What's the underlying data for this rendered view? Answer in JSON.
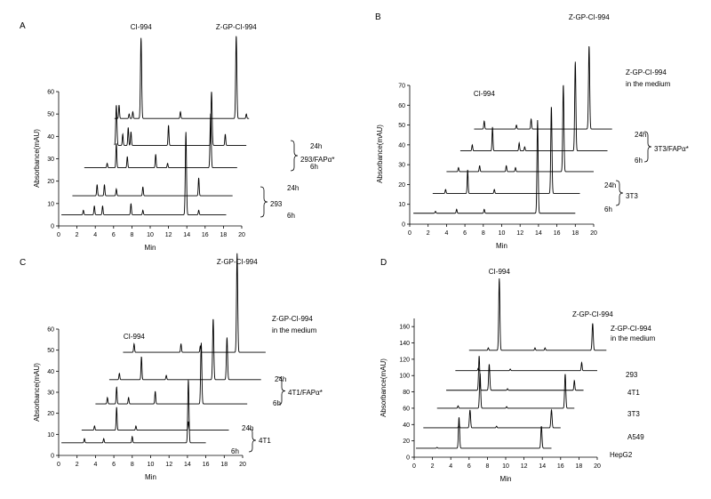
{
  "chart_data": [
    {
      "panel_label": "A",
      "type": "line",
      "xlabel": "Min",
      "ylabel": "Absorbance(mAU)",
      "xlim": [
        0,
        20
      ],
      "ylim": [
        0,
        60
      ],
      "x_ticks": [
        0,
        2,
        4,
        6,
        8,
        10,
        12,
        14,
        16,
        18,
        20
      ],
      "y_ticks": [
        0,
        10,
        20,
        30,
        40,
        50,
        60
      ],
      "annotations": [
        "CI-994",
        "Z-GP-CI-994"
      ],
      "group_labels": [
        "293/FAPα*",
        "293"
      ],
      "series": [
        {
          "name": "",
          "x_start": 6.1,
          "x_end": 20.8,
          "baseline": 48,
          "peaks": [
            [
              6.6,
              6
            ],
            [
              7.7,
              2
            ],
            [
              8.1,
              3
            ],
            [
              9.0,
              36
            ],
            [
              13.3,
              3
            ],
            [
              19.4,
              37
            ],
            [
              20.5,
              2
            ]
          ]
        },
        {
          "name": "24h",
          "x_start": 6.1,
          "x_end": 20.5,
          "baseline": 36,
          "peaks": [
            [
              6.3,
              18
            ],
            [
              7.0,
              5
            ],
            [
              7.6,
              8
            ],
            [
              7.9,
              6
            ],
            [
              12.0,
              9
            ],
            [
              16.7,
              24
            ],
            [
              18.2,
              5
            ]
          ]
        },
        {
          "name": "6h",
          "x_start": 2.8,
          "x_end": 19.5,
          "baseline": 26,
          "peaks": [
            [
              5.3,
              2
            ],
            [
              6.3,
              11
            ],
            [
              7.5,
              5
            ],
            [
              10.6,
              6
            ],
            [
              11.9,
              2
            ],
            [
              16.6,
              24
            ]
          ]
        },
        {
          "name": "24h",
          "x_start": 1.5,
          "x_end": 19.0,
          "baseline": 13.5,
          "peaks": [
            [
              4.2,
              5
            ],
            [
              5.0,
              5
            ],
            [
              6.3,
              3
            ],
            [
              9.2,
              4
            ],
            [
              15.3,
              8
            ]
          ]
        },
        {
          "name": "6h",
          "x_start": 0.3,
          "x_end": 18.3,
          "baseline": 5,
          "peaks": [
            [
              2.7,
              2
            ],
            [
              3.9,
              4
            ],
            [
              4.8,
              4
            ],
            [
              7.9,
              5
            ],
            [
              9.2,
              2
            ],
            [
              13.9,
              37
            ],
            [
              15.3,
              2
            ]
          ]
        }
      ]
    },
    {
      "panel_label": "B",
      "type": "line",
      "xlabel": "Min",
      "ylabel": "Absorbance(mAU)",
      "xlim": [
        0,
        20
      ],
      "ylim": [
        0,
        70
      ],
      "x_ticks": [
        0,
        2,
        4,
        6,
        8,
        10,
        12,
        14,
        16,
        18,
        20
      ],
      "y_ticks": [
        0,
        10,
        20,
        30,
        40,
        50,
        60,
        70
      ],
      "annotations": [
        "CI-994",
        "Z-GP-CI-994",
        "Z-GP-CI-994\nin the medium"
      ],
      "group_labels": [
        "3T3/FAPα*",
        "3T3"
      ],
      "series": [
        {
          "name": "",
          "x_start": 7.0,
          "x_end": 22.0,
          "baseline": 48,
          "peaks": [
            [
              8.1,
              4
            ],
            [
              11.6,
              2
            ],
            [
              13.2,
              5
            ],
            [
              19.5,
              42
            ]
          ]
        },
        {
          "name": "24h",
          "x_start": 5.5,
          "x_end": 21.5,
          "baseline": 37,
          "peaks": [
            [
              6.8,
              3
            ],
            [
              9.0,
              12
            ],
            [
              11.9,
              4
            ],
            [
              12.5,
              2
            ],
            [
              18.0,
              45
            ]
          ]
        },
        {
          "name": "6h",
          "x_start": 4.0,
          "x_end": 20.0,
          "baseline": 26.5,
          "peaks": [
            [
              5.3,
              2
            ],
            [
              7.6,
              3
            ],
            [
              10.5,
              3
            ],
            [
              11.5,
              2
            ],
            [
              16.7,
              44
            ]
          ]
        },
        {
          "name": "24h",
          "x_start": 2.5,
          "x_end": 18.5,
          "baseline": 15.5,
          "peaks": [
            [
              3.9,
              2
            ],
            [
              6.3,
              12
            ],
            [
              9.2,
              2
            ],
            [
              15.4,
              44
            ]
          ]
        },
        {
          "name": "6h",
          "x_start": 0.4,
          "x_end": 18.0,
          "baseline": 5.5,
          "peaks": [
            [
              2.8,
              1
            ],
            [
              5.1,
              2
            ],
            [
              8.1,
              2
            ],
            [
              13.9,
              47
            ]
          ]
        }
      ]
    },
    {
      "panel_label": "C",
      "type": "line",
      "xlabel": "Min",
      "ylabel": "Absorbance(mAU)",
      "xlim": [
        0,
        20
      ],
      "ylim": [
        0,
        60
      ],
      "x_ticks": [
        0,
        2,
        4,
        6,
        8,
        10,
        12,
        14,
        16,
        18,
        20
      ],
      "y_ticks": [
        0,
        10,
        20,
        30,
        40,
        50,
        60
      ],
      "annotations": [
        "CI-994",
        "Z-GP-CI-994",
        "Z-GP-CI-994\nin the medium"
      ],
      "group_labels": [
        "4T1/FAPα*",
        "4T1"
      ],
      "series": [
        {
          "name": "",
          "x_start": 7.0,
          "x_end": 22.5,
          "baseline": 49,
          "peaks": [
            [
              8.2,
              4
            ],
            [
              13.3,
              4
            ],
            [
              15.4,
              3
            ],
            [
              19.4,
              47
            ]
          ]
        },
        {
          "name": "24h",
          "x_start": 5.5,
          "x_end": 22.0,
          "baseline": 36,
          "peaks": [
            [
              6.6,
              3
            ],
            [
              9.0,
              11
            ],
            [
              11.7,
              2
            ],
            [
              16.8,
              29
            ],
            [
              18.3,
              20
            ]
          ]
        },
        {
          "name": "6h",
          "x_start": 4.0,
          "x_end": 20.5,
          "baseline": 24.5,
          "peaks": [
            [
              5.3,
              3
            ],
            [
              6.3,
              8
            ],
            [
              7.6,
              3
            ],
            [
              10.5,
              6
            ],
            [
              15.5,
              29
            ]
          ]
        },
        {
          "name": "24h",
          "x_start": 2.5,
          "x_end": 18.5,
          "baseline": 12,
          "peaks": [
            [
              3.9,
              2
            ],
            [
              6.3,
              11
            ],
            [
              8.4,
              2
            ],
            [
              14.1,
              4
            ]
          ]
        },
        {
          "name": "6h",
          "x_start": 0.3,
          "x_end": 16.0,
          "baseline": 6,
          "peaks": [
            [
              2.8,
              2
            ],
            [
              4.9,
              2
            ],
            [
              8.0,
              3
            ],
            [
              14.1,
              30
            ]
          ]
        }
      ]
    },
    {
      "panel_label": "D",
      "type": "line",
      "xlabel": "Min",
      "ylabel": "Absorbance(mAU)",
      "xlim": [
        0,
        20
      ],
      "ylim": [
        0,
        170
      ],
      "x_ticks": [
        0,
        2,
        4,
        6,
        8,
        10,
        12,
        14,
        16,
        18,
        20
      ],
      "y_ticks": [
        0,
        20,
        40,
        60,
        80,
        100,
        120,
        140,
        160
      ],
      "annotations": [
        "CI-994",
        "Z-GP-CI-994",
        "Z-GP-CI-994\nin the medium"
      ],
      "series": [
        {
          "name": "",
          "x_start": 6.0,
          "x_end": 21.0,
          "baseline": 131,
          "peaks": [
            [
              8.1,
              3
            ],
            [
              9.3,
              88
            ],
            [
              13.2,
              3
            ],
            [
              14.3,
              3
            ],
            [
              19.5,
              33
            ]
          ]
        },
        {
          "name": "293",
          "x_start": 4.5,
          "x_end": 20.0,
          "baseline": 106,
          "peaks": [
            [
              7.0,
              3
            ],
            [
              10.5,
              2
            ],
            [
              18.3,
              10
            ]
          ]
        },
        {
          "name": "4T1",
          "x_start": 3.5,
          "x_end": 18.5,
          "baseline": 82,
          "peaks": [
            [
              7.1,
              42
            ],
            [
              8.2,
              32
            ],
            [
              10.2,
              2
            ],
            [
              17.5,
              12
            ]
          ]
        },
        {
          "name": "3T3",
          "x_start": 2.5,
          "x_end": 17.5,
          "baseline": 60,
          "peaks": [
            [
              4.8,
              3
            ],
            [
              7.2,
              43
            ],
            [
              10.1,
              2
            ],
            [
              16.5,
              42
            ]
          ]
        },
        {
          "name": "A549",
          "x_start": 1.0,
          "x_end": 16.0,
          "baseline": 36,
          "peaks": [
            [
              4.9,
              5
            ],
            [
              6.1,
              22
            ],
            [
              9.0,
              2
            ],
            [
              15.0,
              22
            ]
          ]
        },
        {
          "name": "HepG2",
          "x_start": 0.2,
          "x_end": 15.0,
          "baseline": 11,
          "peaks": [
            [
              2.5,
              1
            ],
            [
              4.9,
              38
            ],
            [
              13.9,
              27
            ]
          ]
        }
      ]
    }
  ]
}
